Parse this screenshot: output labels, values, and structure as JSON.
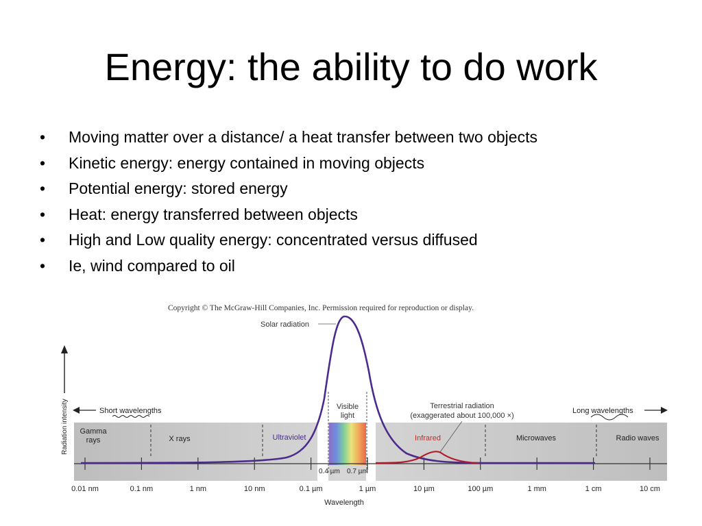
{
  "slide": {
    "title": "Energy: the ability to do work",
    "bullet_glyph": "•",
    "bullets": [
      "Moving matter over a distance/ a heat transfer between two objects",
      "Kinetic energy: energy contained in moving objects",
      "Potential energy: stored energy",
      "Heat: energy transferred between objects",
      "High and Low quality energy: concentrated versus diffused",
      "Ie, wind compared to oil"
    ]
  },
  "figure": {
    "copyright": "Copyright © The McGraw-Hill Companies, Inc. Permission required for reproduction or display.",
    "y_axis_label": "Radiation intensity",
    "x_axis_label": "Wavelength",
    "solar_radiation_label": "Solar radiation",
    "terrestrial_label_line1": "Terrestrial radiation",
    "terrestrial_label_line2": "(exaggerated about 100,000 ×)",
    "short_wavelengths": "Short wavelengths",
    "long_wavelengths": "Long wavelengths",
    "visible_line1": "Visible",
    "visible_line2": "light",
    "visible_start": "0.4 µm",
    "visible_end": "0.7 µm",
    "bands": {
      "gamma_line1": "Gamma",
      "gamma_line2": "rays",
      "xrays": "X rays",
      "ultraviolet": "Ultraviolet",
      "infrared": "Infrared",
      "microwaves": "Microwaves",
      "radio": "Radio waves"
    },
    "ticks": [
      "0.01 nm",
      "0.1 nm",
      "1 nm",
      "10 nm",
      "0.1 µm",
      "1 µm",
      "10 µm",
      "100 µm",
      "1 mm",
      "1 cm",
      "10 cm"
    ],
    "colors": {
      "solar_curve": "#4b2c8c",
      "terrestrial_curve": "#b01c2c",
      "ultraviolet_text": "#4b2c8c",
      "infrared_text": "#c0302a",
      "band_gray": "#c8c8c8"
    }
  }
}
